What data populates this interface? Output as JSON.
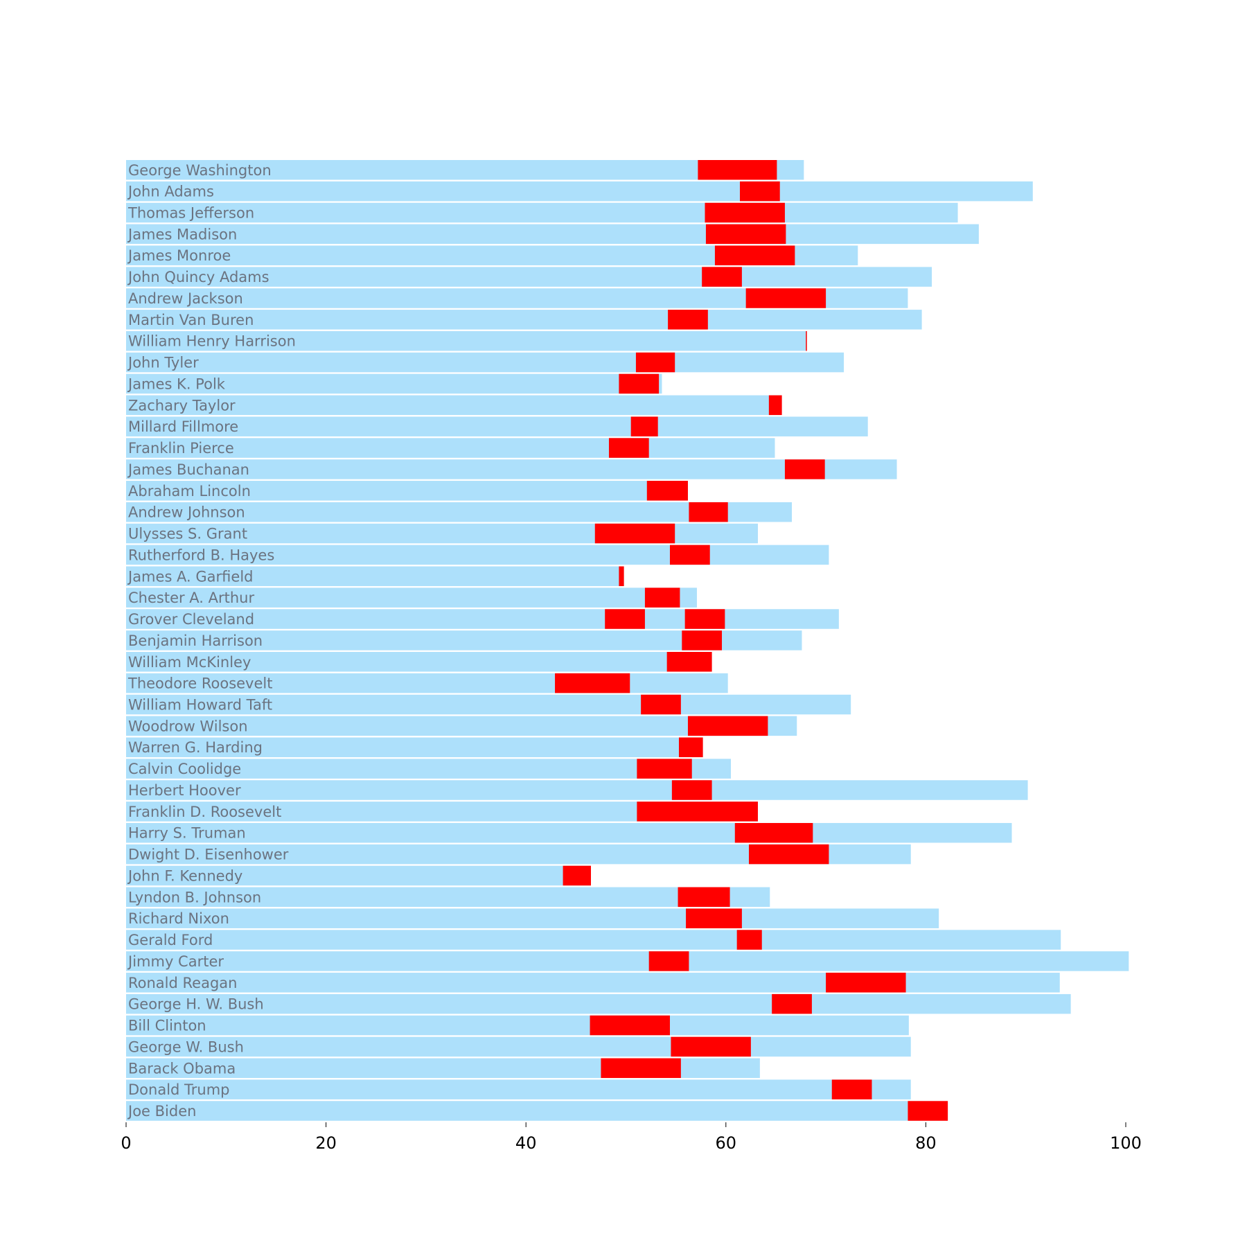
{
  "chart_data": {
    "type": "bar",
    "orientation": "horizontal",
    "title": "",
    "xlabel": "",
    "ylabel": "",
    "xlim": [
      0,
      100
    ],
    "x_ticks": [
      0,
      20,
      40,
      60,
      80,
      100
    ],
    "grid": false,
    "legend": "none",
    "colors": {
      "lifespan": "#ade0fb",
      "presidency": "#ff0000"
    },
    "presidents": [
      {
        "name": "George Washington",
        "lifespan": 67.8,
        "term": [
          57.2,
          65.1
        ]
      },
      {
        "name": "John Adams",
        "lifespan": 90.7,
        "term": [
          61.4,
          65.4
        ]
      },
      {
        "name": "Thomas Jefferson",
        "lifespan": 83.2,
        "term": [
          57.9,
          65.9
        ]
      },
      {
        "name": "James Madison",
        "lifespan": 85.3,
        "term": [
          58.0,
          66.0
        ]
      },
      {
        "name": "James Monroe",
        "lifespan": 73.2,
        "term": [
          58.9,
          66.9
        ]
      },
      {
        "name": "John Quincy Adams",
        "lifespan": 80.6,
        "term": [
          57.6,
          61.6
        ]
      },
      {
        "name": "Andrew Jackson",
        "lifespan": 78.2,
        "term": [
          62.0,
          70.0
        ]
      },
      {
        "name": "Martin Van Buren",
        "lifespan": 79.6,
        "term": [
          54.2,
          58.2
        ]
      },
      {
        "name": "William Henry Harrison",
        "lifespan": 68.1,
        "term": [
          68.0,
          68.1
        ]
      },
      {
        "name": "John Tyler",
        "lifespan": 71.8,
        "term": [
          51.0,
          54.9
        ]
      },
      {
        "name": "James K. Polk",
        "lifespan": 53.6,
        "term": [
          49.3,
          53.3
        ]
      },
      {
        "name": "Zachary Taylor",
        "lifespan": 65.6,
        "term": [
          64.3,
          65.6
        ]
      },
      {
        "name": "Millard Fillmore",
        "lifespan": 74.2,
        "term": [
          50.5,
          53.2
        ]
      },
      {
        "name": "Franklin Pierce",
        "lifespan": 64.9,
        "term": [
          48.3,
          52.3
        ]
      },
      {
        "name": "James Buchanan",
        "lifespan": 77.1,
        "term": [
          65.9,
          69.9
        ]
      },
      {
        "name": "Abraham Lincoln",
        "lifespan": 56.2,
        "term": [
          52.1,
          56.2
        ]
      },
      {
        "name": "Andrew Johnson",
        "lifespan": 66.6,
        "term": [
          56.3,
          60.2
        ]
      },
      {
        "name": "Ulysses S. Grant",
        "lifespan": 63.2,
        "term": [
          46.9,
          54.9
        ]
      },
      {
        "name": "Rutherford B. Hayes",
        "lifespan": 70.3,
        "term": [
          54.4,
          58.4
        ]
      },
      {
        "name": "James A. Garfield",
        "lifespan": 49.8,
        "term": [
          49.3,
          49.8
        ]
      },
      {
        "name": "Chester A. Arthur",
        "lifespan": 57.1,
        "term": [
          51.9,
          55.4
        ]
      },
      {
        "name": "Grover Cleveland",
        "lifespan": 71.3,
        "term": [
          47.9,
          51.9
        ],
        "term2": [
          55.9,
          59.9
        ]
      },
      {
        "name": "Benjamin Harrison",
        "lifespan": 67.6,
        "term": [
          55.6,
          59.6
        ]
      },
      {
        "name": "William McKinley",
        "lifespan": 58.6,
        "term": [
          54.1,
          58.6
        ]
      },
      {
        "name": "Theodore Roosevelt",
        "lifespan": 60.2,
        "term": [
          42.9,
          50.4
        ]
      },
      {
        "name": "William Howard Taft",
        "lifespan": 72.5,
        "term": [
          51.5,
          55.5
        ]
      },
      {
        "name": "Woodrow Wilson",
        "lifespan": 67.1,
        "term": [
          56.2,
          64.2
        ]
      },
      {
        "name": "Warren G. Harding",
        "lifespan": 57.7,
        "term": [
          55.3,
          57.7
        ]
      },
      {
        "name": "Calvin Coolidge",
        "lifespan": 60.5,
        "term": [
          51.1,
          56.6
        ]
      },
      {
        "name": "Herbert Hoover",
        "lifespan": 90.2,
        "term": [
          54.6,
          58.6
        ]
      },
      {
        "name": "Franklin D. Roosevelt",
        "lifespan": 63.2,
        "term": [
          51.1,
          63.2
        ]
      },
      {
        "name": "Harry S. Truman",
        "lifespan": 88.6,
        "term": [
          60.9,
          68.7
        ]
      },
      {
        "name": "Dwight D. Eisenhower",
        "lifespan": 78.5,
        "term": [
          62.3,
          70.3
        ]
      },
      {
        "name": "John F. Kennedy",
        "lifespan": 46.5,
        "term": [
          43.7,
          46.5
        ]
      },
      {
        "name": "Lyndon B. Johnson",
        "lifespan": 64.4,
        "term": [
          55.2,
          60.4
        ]
      },
      {
        "name": "Richard Nixon",
        "lifespan": 81.3,
        "term": [
          56.0,
          61.6
        ]
      },
      {
        "name": "Gerald Ford",
        "lifespan": 93.5,
        "term": [
          61.1,
          63.6
        ]
      },
      {
        "name": "Jimmy Carter",
        "lifespan": 100.3,
        "term": [
          52.3,
          56.3
        ]
      },
      {
        "name": "Ronald Reagan",
        "lifespan": 93.4,
        "term": [
          70.0,
          78.0
        ]
      },
      {
        "name": "George H. W. Bush",
        "lifespan": 94.5,
        "term": [
          64.6,
          68.6
        ]
      },
      {
        "name": "Bill Clinton",
        "lifespan": 78.3,
        "term": [
          46.4,
          54.4
        ]
      },
      {
        "name": "George W. Bush",
        "lifespan": 78.5,
        "term": [
          54.5,
          62.5
        ]
      },
      {
        "name": "Barack Obama",
        "lifespan": 63.4,
        "term": [
          47.5,
          55.5
        ]
      },
      {
        "name": "Donald Trump",
        "lifespan": 78.5,
        "term": [
          70.6,
          74.6
        ]
      },
      {
        "name": "Joe Biden",
        "lifespan": 78.2,
        "term": [
          78.2,
          82.2
        ]
      }
    ]
  }
}
